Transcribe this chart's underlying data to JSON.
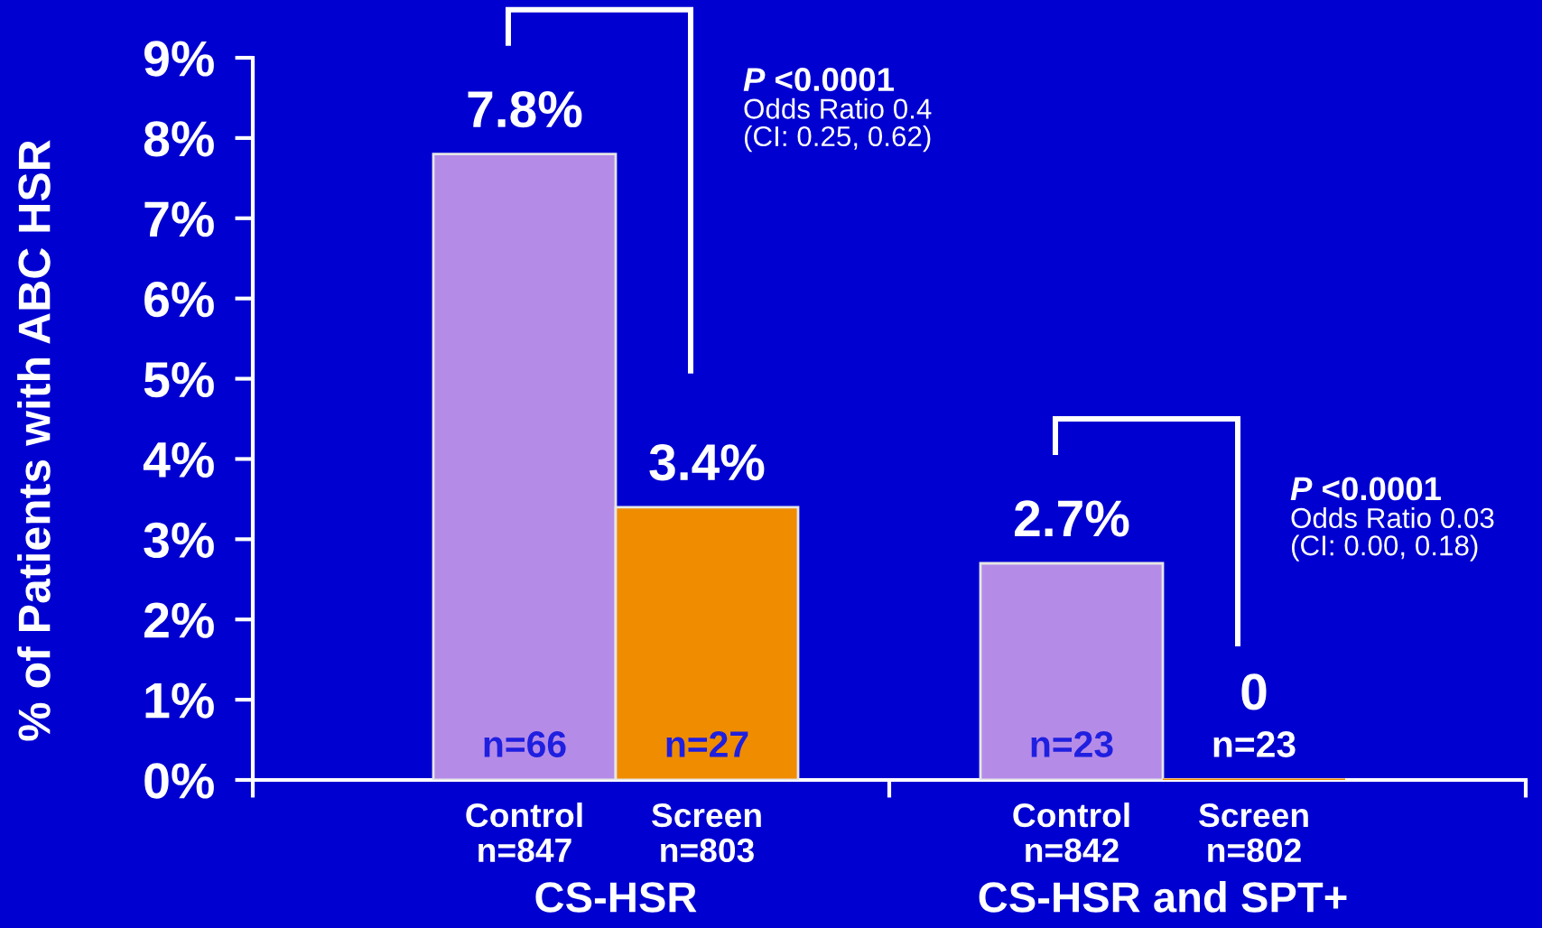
{
  "chart_data": {
    "type": "bar",
    "ylabel": "% of Patients with ABC HSR",
    "categories": [
      "Control\nn=847",
      "Screen\nn=803",
      null,
      "Control\nn=842",
      "Screen\nn=802"
    ],
    "values": [
      7.8,
      3.4,
      null,
      2.7,
      0
    ],
    "colors": [
      "#b48ce8",
      "#f08c00",
      null,
      "#b48ce8",
      "#f08c00"
    ],
    "value_labels": [
      "7.8%",
      "3.4%",
      null,
      "2.7%",
      "0"
    ],
    "ylim": [
      0,
      9
    ],
    "yticks": [
      {
        "value": 0,
        "label": "0%"
      },
      {
        "value": 1,
        "label": "1%"
      },
      {
        "value": 2,
        "label": "2%"
      },
      {
        "value": 3,
        "label": "3%"
      },
      {
        "value": 4,
        "label": "4%"
      },
      {
        "value": 5,
        "label": "5%"
      },
      {
        "value": 6,
        "label": "6%"
      },
      {
        "value": 7,
        "label": "7%"
      },
      {
        "value": 8,
        "label": "8%"
      },
      {
        "value": 9,
        "label": "9%"
      }
    ],
    "annotations": [
      {
        "text": "n=66",
        "x": "Control\nn=847",
        "y": 0
      },
      {
        "text": "n=27",
        "x": "Screen\nn=803",
        "y": 0
      },
      {
        "text": "n=23",
        "x": "Control\nn=842",
        "y": 0
      },
      {
        "text": "n=23",
        "x": "Screen\nn=802",
        "y": 0
      },
      "CS-HSR",
      "CS-HSR and SPT+",
      "P <0.0001\nOdds Ratio 0.4\n(CI: 0.25, 0.62)",
      "P <0.0001\nOdds Ratio 0.03\n(CI: 0.00, 0.18)"
    ]
  }
}
